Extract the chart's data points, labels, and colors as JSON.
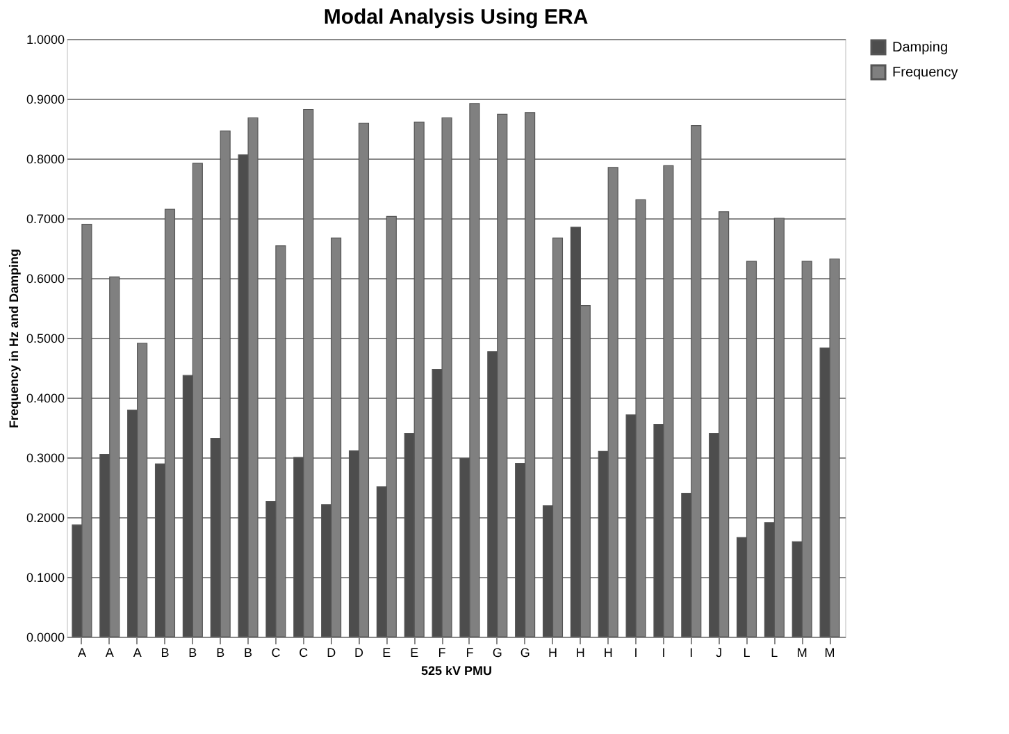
{
  "chart_data": {
    "type": "bar",
    "title": "Modal Analysis Using ERA",
    "xlabel": "525 kV PMU",
    "ylabel": "Frequency in Hz and Damping",
    "categories": [
      "A",
      "A",
      "A",
      "B",
      "B",
      "B",
      "B",
      "C",
      "C",
      "D",
      "D",
      "E",
      "E",
      "F",
      "F",
      "G",
      "G",
      "H",
      "H",
      "H",
      "I",
      "I",
      "I",
      "J",
      "L",
      "L",
      "M",
      "M"
    ],
    "series": [
      {
        "name": "Damping",
        "color": "#4d4d4d",
        "values": [
          0.187,
          0.305,
          0.379,
          0.289,
          0.437,
          0.332,
          0.806,
          0.226,
          0.3,
          0.221,
          0.311,
          0.251,
          0.34,
          0.447,
          0.298,
          0.477,
          0.29,
          0.219,
          0.685,
          0.31,
          0.371,
          0.355,
          0.24,
          0.34,
          0.166,
          0.191,
          0.159,
          0.483
        ]
      },
      {
        "name": "Frequency",
        "color": "#808080",
        "values": [
          0.69,
          0.602,
          0.491,
          0.715,
          0.792,
          0.846,
          0.868,
          0.654,
          0.882,
          0.667,
          0.859,
          0.703,
          0.861,
          0.868,
          0.892,
          0.874,
          0.877,
          0.667,
          0.554,
          0.785,
          0.731,
          0.788,
          0.855,
          0.711,
          0.628,
          0.7,
          0.628,
          0.632
        ]
      }
    ],
    "ylim": [
      0,
      1
    ],
    "yticks": [
      {
        "value": 0,
        "label": "0.0000"
      },
      {
        "value": 0.1,
        "label": "0.1000"
      },
      {
        "value": 0.2,
        "label": "0.2000"
      },
      {
        "value": 0.3,
        "label": "0.3000"
      },
      {
        "value": 0.4,
        "label": "0.4000"
      },
      {
        "value": 0.5,
        "label": "0.5000"
      },
      {
        "value": 0.6,
        "label": "0.6000"
      },
      {
        "value": 0.7,
        "label": "0.7000"
      },
      {
        "value": 0.8,
        "label": "0.8000"
      },
      {
        "value": 0.9,
        "label": "0.9000"
      },
      {
        "value": 1,
        "label": "1.0000"
      }
    ],
    "grid": "y",
    "legend": "right"
  }
}
